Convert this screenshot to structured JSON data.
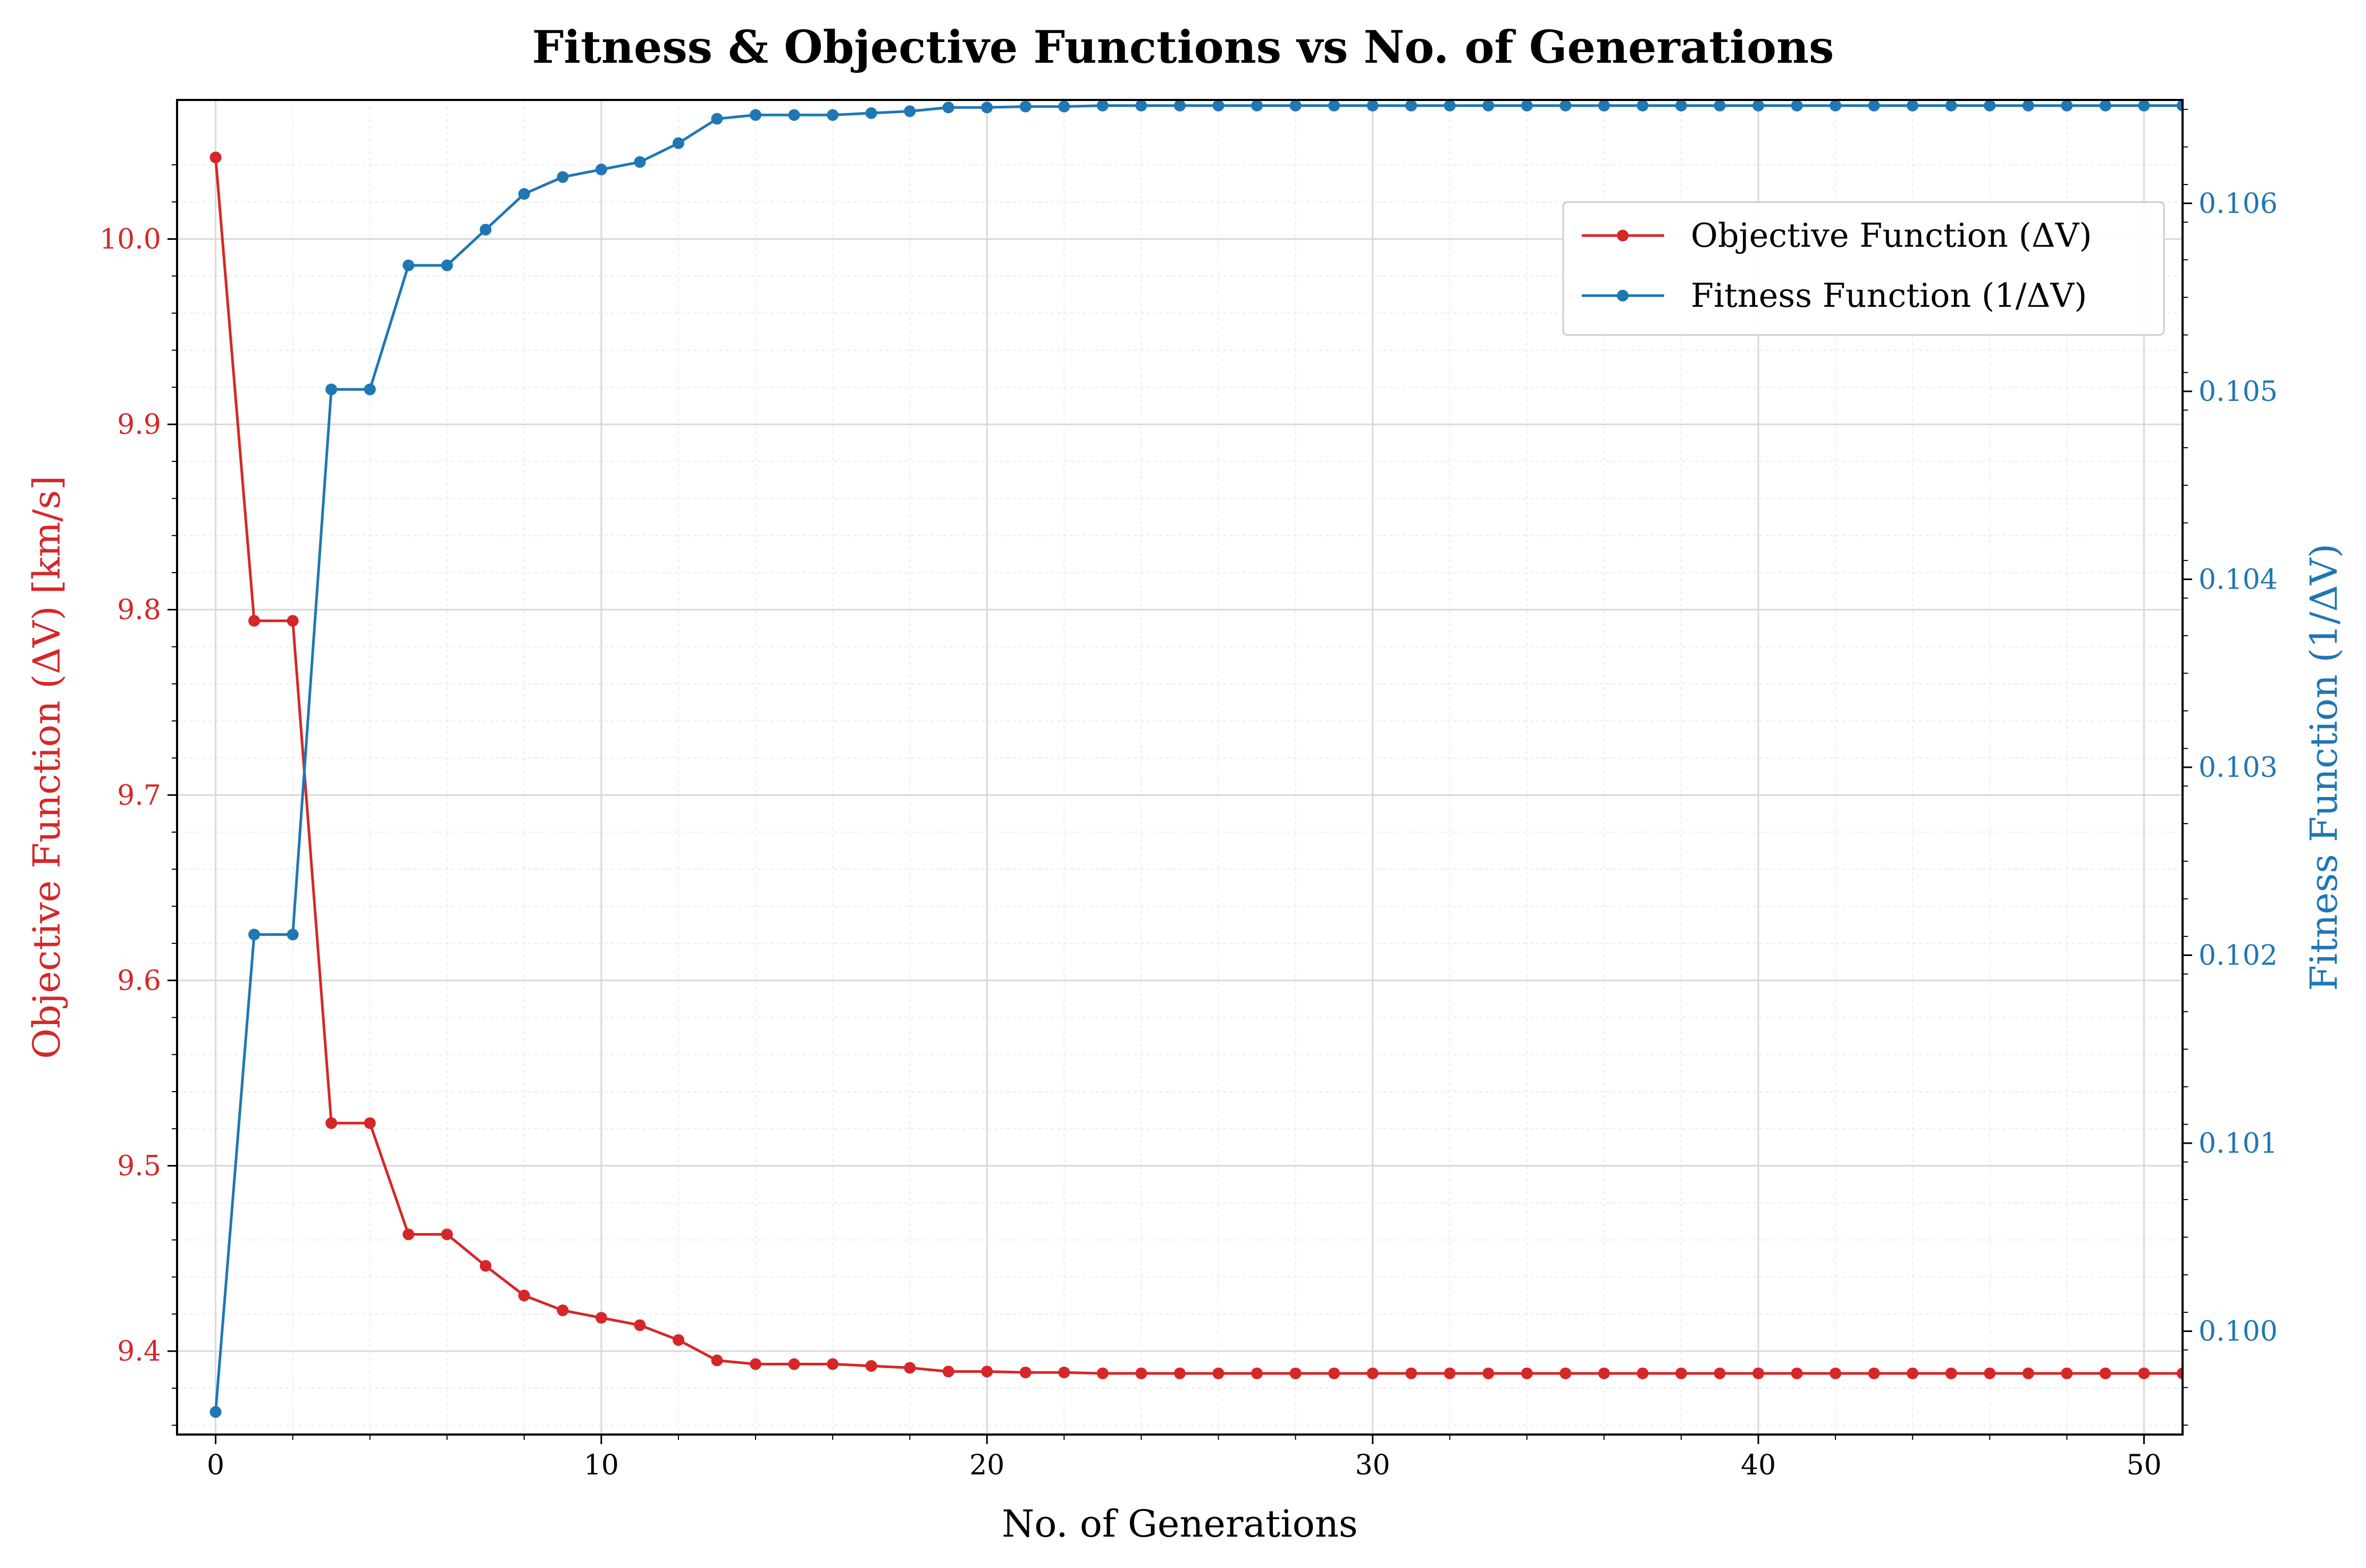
{
  "chart_data": {
    "type": "line",
    "title": "Fitness & Objective Functions vs No. of Generations",
    "xlabel": "No. of Generations",
    "ylabel_left": "Objective Function (ΔV) [km/s]",
    "ylabel_right": "Fitness Function (1/ΔV)",
    "xlim": [
      -1,
      51
    ],
    "ylim_left": [
      9.355,
      10.075
    ],
    "ylim_right": [
      0.09945,
      0.10655
    ],
    "x_ticks": [
      "0",
      "10",
      "20",
      "30",
      "40",
      "50"
    ],
    "y_ticks_left": [
      "9.4",
      "9.5",
      "9.6",
      "9.7",
      "9.8",
      "9.9",
      "10.0"
    ],
    "y_ticks_right": [
      "0.100",
      "0.101",
      "0.102",
      "0.103",
      "0.104",
      "0.105",
      "0.106"
    ],
    "grid": true,
    "legend_position": "top-right",
    "colors": {
      "objective": "#d62728",
      "fitness": "#1f77b4"
    },
    "x": [
      0,
      1,
      2,
      3,
      4,
      5,
      6,
      7,
      8,
      9,
      10,
      11,
      12,
      13,
      14,
      15,
      16,
      17,
      18,
      19,
      20,
      21,
      22,
      23,
      24,
      25,
      26,
      27,
      28,
      29,
      30,
      31,
      32,
      33,
      34,
      35,
      36,
      37,
      38,
      39,
      40,
      41,
      42,
      43,
      44,
      45,
      46,
      47,
      48,
      49,
      50,
      51
    ],
    "series": [
      {
        "name": "Objective Function (ΔV)",
        "axis": "left",
        "values": [
          10.044,
          9.794,
          9.794,
          9.523,
          9.523,
          9.463,
          9.463,
          9.446,
          9.43,
          9.422,
          9.418,
          9.414,
          9.406,
          9.395,
          9.393,
          9.393,
          9.393,
          9.392,
          9.391,
          9.389,
          9.389,
          9.3885,
          9.3885,
          9.388,
          9.388,
          9.388,
          9.388,
          9.388,
          9.388,
          9.388,
          9.388,
          9.388,
          9.388,
          9.388,
          9.388,
          9.388,
          9.388,
          9.388,
          9.388,
          9.388,
          9.388,
          9.388,
          9.388,
          9.388,
          9.388,
          9.388,
          9.388,
          9.388,
          9.388,
          9.388,
          9.388,
          9.388
        ]
      },
      {
        "name": "Fitness Function (1/ΔV)",
        "axis": "right",
        "values": [
          0.09957,
          0.10211,
          0.10211,
          0.10501,
          0.10501,
          0.10567,
          0.10567,
          0.10586,
          0.10605,
          0.10614,
          0.10618,
          0.10622,
          0.10632,
          0.10645,
          0.10647,
          0.10647,
          0.10647,
          0.10648,
          0.10649,
          0.10651,
          0.10651,
          0.106515,
          0.106515,
          0.10652,
          0.10652,
          0.10652,
          0.10652,
          0.10652,
          0.10652,
          0.10652,
          0.10652,
          0.10652,
          0.10652,
          0.10652,
          0.10652,
          0.10652,
          0.10652,
          0.10652,
          0.10652,
          0.10652,
          0.10652,
          0.10652,
          0.10652,
          0.10652,
          0.10652,
          0.10652,
          0.10652,
          0.10652,
          0.10652,
          0.10652,
          0.10652,
          0.10652
        ]
      }
    ]
  }
}
